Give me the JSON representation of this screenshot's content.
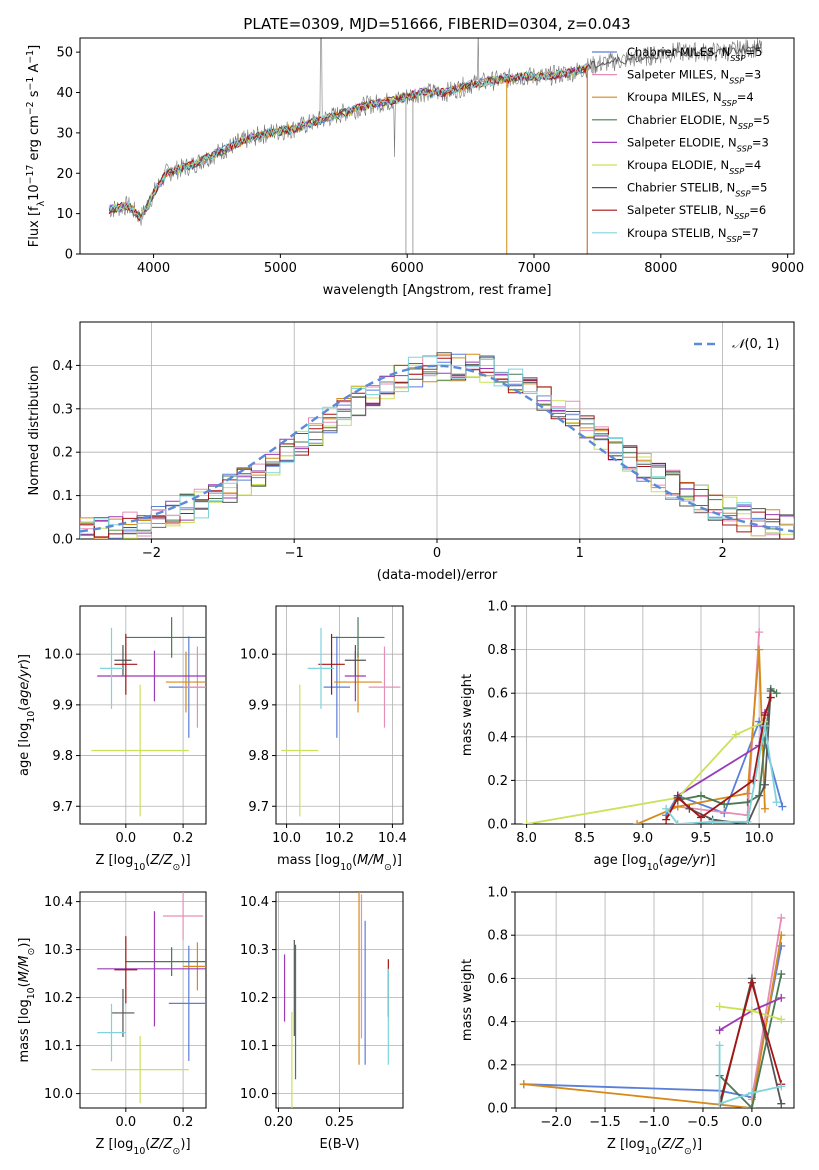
{
  "title": "PLATE=0309, MJD=51666, FIBERID=0304, z=0.043",
  "colors": [
    "#5a7fd8",
    "#e58fb8",
    "#d68a1a",
    "#4a7a54",
    "#9b3bb5",
    "#c9e25a",
    "#555555",
    "#a51414",
    "#7fd4dc"
  ],
  "chart_data": [
    {
      "type": "line",
      "id": "spectrum",
      "xlabel": "wavelength [Angstrom, rest frame]",
      "ylabel": "Flux [f_λ10^-17 erg cm^-2 s^-1 A^-1]",
      "xlim": [
        3420,
        9050
      ],
      "ylim": [
        0,
        53.5
      ],
      "xticks": [
        4000,
        5000,
        6000,
        7000,
        8000,
        9000
      ],
      "yticks": [
        0,
        10,
        20,
        30,
        40,
        50
      ],
      "grid": false,
      "legend_position": "right",
      "series": [
        {
          "name": "Chabrier MILES, N_SSP=5"
        },
        {
          "name": "Salpeter MILES, N_SSP=3"
        },
        {
          "name": "Kroupa MILES, N_SSP=4"
        },
        {
          "name": "Chabrier ELODIE, N_SSP=5"
        },
        {
          "name": "Salpeter ELODIE, N_SSP=3"
        },
        {
          "name": "Kroupa ELODIE, N_SSP=4"
        },
        {
          "name": "Chabrier STELIB, N_SSP=5"
        },
        {
          "name": "Salpeter STELIB, N_SSP=6"
        },
        {
          "name": "Kroupa STELIB, N_SSP=7"
        }
      ],
      "continuum": [
        [
          3650,
          11
        ],
        [
          3800,
          12
        ],
        [
          3900,
          9
        ],
        [
          4000,
          15
        ],
        [
          4100,
          20
        ],
        [
          4300,
          22
        ],
        [
          4500,
          25
        ],
        [
          4700,
          28
        ],
        [
          4900,
          30
        ],
        [
          5100,
          31
        ],
        [
          5300,
          33
        ],
        [
          5500,
          35
        ],
        [
          5700,
          37
        ],
        [
          5900,
          38
        ],
        [
          6100,
          40
        ],
        [
          6300,
          40
        ],
        [
          6500,
          42
        ],
        [
          6700,
          43
        ],
        [
          6900,
          44
        ],
        [
          7100,
          44
        ],
        [
          7300,
          45
        ],
        [
          7500,
          47
        ],
        [
          7700,
          48
        ],
        [
          7900,
          49
        ],
        [
          8100,
          50
        ],
        [
          8300,
          50
        ],
        [
          8500,
          50
        ],
        [
          8700,
          51
        ],
        [
          8800,
          51
        ]
      ]
    },
    {
      "type": "histogram",
      "id": "residuals",
      "xlabel": "(data-model)/error",
      "ylabel": "Normed distribution",
      "xlim": [
        -2.5,
        2.5
      ],
      "ylim": [
        0,
        0.5
      ],
      "xticks": [
        -2,
        -1,
        0,
        1,
        2
      ],
      "yticks": [
        0.0,
        0.1,
        0.2,
        0.3,
        0.4
      ],
      "grid": true,
      "legend_position": "top-right",
      "reference": {
        "name": "N(0,1)",
        "mu": 0,
        "sigma": 1
      },
      "bin_width": 0.1
    },
    {
      "type": "scatter",
      "id": "age-vs-Z",
      "xlabel": "Z [log10(Z/Z☉)]",
      "ylabel": "age  [log10(age/yr)]",
      "xlim": [
        -0.16,
        0.28
      ],
      "ylim": [
        9.665,
        10.095
      ],
      "xticks": [
        0.0,
        0.2
      ],
      "yticks": [
        9.7,
        9.8,
        9.9,
        10.0
      ],
      "points": [
        {
          "x": 0.22,
          "y": 9.935,
          "xerr": 0.07,
          "yerr": 0.1
        },
        {
          "x": 0.25,
          "y": 9.935,
          "xerr": 0.05,
          "yerr": 0.08
        },
        {
          "x": 0.21,
          "y": 9.945,
          "xerr": 0.07,
          "yerr": 0.06
        },
        {
          "x": 0.16,
          "y": 10.033,
          "xerr": 0.16,
          "yerr": 0.04
        },
        {
          "x": 0.1,
          "y": 9.957,
          "xerr": 0.2,
          "yerr": 0.05
        },
        {
          "x": 0.05,
          "y": 9.81,
          "xerr": 0.17,
          "yerr": 0.13
        },
        {
          "x": -0.01,
          "y": 9.988,
          "xerr": 0.03,
          "yerr": 0.03
        },
        {
          "x": 0.0,
          "y": 9.98,
          "xerr": 0.04,
          "yerr": 0.06
        },
        {
          "x": -0.05,
          "y": 9.972,
          "xerr": 0.04,
          "yerr": 0.08
        }
      ]
    },
    {
      "type": "scatter",
      "id": "age-vs-mass",
      "xlabel": "mass [log10(M/M☉)]",
      "ylabel": "",
      "xlim": [
        9.96,
        10.44
      ],
      "ylim": [
        9.665,
        10.095
      ],
      "xticks": [
        10.0,
        10.2,
        10.4
      ],
      "yticks": [
        9.7,
        9.8,
        9.9,
        10.0
      ],
      "points": [
        {
          "x": 10.19,
          "y": 9.935,
          "xerr": 0.05,
          "yerr": 0.1
        },
        {
          "x": 10.37,
          "y": 9.935,
          "xerr": 0.06,
          "yerr": 0.08
        },
        {
          "x": 10.27,
          "y": 9.945,
          "xerr": 0.09,
          "yerr": 0.06
        },
        {
          "x": 10.27,
          "y": 10.033,
          "xerr": 0.1,
          "yerr": 0.04
        },
        {
          "x": 10.26,
          "y": 9.957,
          "xerr": 0.04,
          "yerr": 0.05
        },
        {
          "x": 10.05,
          "y": 9.81,
          "xerr": 0.07,
          "yerr": 0.13
        },
        {
          "x": 10.26,
          "y": 9.988,
          "xerr": 0.04,
          "yerr": 0.03
        },
        {
          "x": 10.17,
          "y": 9.98,
          "xerr": 0.05,
          "yerr": 0.06
        },
        {
          "x": 10.13,
          "y": 9.972,
          "xerr": 0.05,
          "yerr": 0.08
        }
      ]
    },
    {
      "type": "line",
      "id": "weight-vs-age",
      "xlabel": "age  [log10(age/yr)]",
      "ylabel": "mass weight",
      "xlim": [
        7.9,
        10.3
      ],
      "ylim": [
        0,
        1
      ],
      "xticks": [
        8.0,
        8.5,
        9.0,
        9.5,
        10.0
      ],
      "yticks": [
        0.0,
        0.2,
        0.4,
        0.6,
        0.8,
        1.0
      ],
      "grid": true,
      "series": [
        {
          "x": [
            9.2,
            9.3,
            9.7,
            10.0,
            10.2
          ],
          "y": [
            0.04,
            0.13,
            0.05,
            0.47,
            0.08
          ]
        },
        {
          "x": [
            9.3,
            9.9,
            10.0
          ],
          "y": [
            0.08,
            0.04,
            0.88
          ]
        },
        {
          "x": [
            8.95,
            9.3,
            9.9,
            10.0,
            10.05
          ],
          "y": [
            0.0,
            0.08,
            0.14,
            0.8,
            0.07
          ]
        },
        {
          "x": [
            9.3,
            9.5,
            9.7,
            9.9,
            10.0,
            10.1,
            10.15
          ],
          "y": [
            0.11,
            0.13,
            0.09,
            0.1,
            0.13,
            0.62,
            0.6
          ]
        },
        {
          "x": [
            9.3,
            10.0,
            10.05
          ],
          "y": [
            0.13,
            0.36,
            0.51
          ]
        },
        {
          "x": [
            8.0,
            9.3,
            9.8,
            10.05
          ],
          "y": [
            0.0,
            0.12,
            0.41,
            0.47
          ]
        },
        {
          "x": [
            9.3,
            9.4,
            9.6,
            9.9,
            10.05,
            10.1
          ],
          "y": [
            0.13,
            0.07,
            0.02,
            0.0,
            0.18,
            0.61
          ]
        },
        {
          "x": [
            9.2,
            9.3,
            9.5,
            9.95,
            10.05,
            10.1
          ],
          "y": [
            0.02,
            0.12,
            0.03,
            0.2,
            0.5,
            0.58
          ]
        },
        {
          "x": [
            9.2,
            9.3,
            9.6,
            9.9,
            10.05,
            10.15
          ],
          "y": [
            0.07,
            0.0,
            0.01,
            0.01,
            0.45,
            0.1
          ]
        }
      ]
    },
    {
      "type": "scatter",
      "id": "mass-vs-Z",
      "xlabel": "Z [log10(Z/Z☉)]",
      "ylabel": "mass [log10(M/M☉)]",
      "xlim": [
        -0.16,
        0.28
      ],
      "ylim": [
        9.97,
        10.42
      ],
      "xticks": [
        0.0,
        0.2
      ],
      "yticks": [
        10.0,
        10.1,
        10.2,
        10.3,
        10.4
      ],
      "points": [
        {
          "x": 0.22,
          "y": 10.188,
          "xerr": 0.07,
          "yerr": 0.12
        },
        {
          "x": 0.2,
          "y": 10.37,
          "xerr": 0.07,
          "yerr": 0.05
        },
        {
          "x": 0.25,
          "y": 10.265,
          "xerr": 0.05,
          "yerr": 0.05
        },
        {
          "x": 0.16,
          "y": 10.275,
          "xerr": 0.16,
          "yerr": 0.03
        },
        {
          "x": 0.1,
          "y": 10.26,
          "xerr": 0.2,
          "yerr": 0.12
        },
        {
          "x": 0.05,
          "y": 10.05,
          "xerr": 0.17,
          "yerr": 0.07
        },
        {
          "x": -0.01,
          "y": 10.168,
          "xerr": 0.04,
          "yerr": 0.05
        },
        {
          "x": 0.0,
          "y": 10.258,
          "xerr": 0.04,
          "yerr": 0.07
        },
        {
          "x": -0.05,
          "y": 10.127,
          "xerr": 0.05,
          "yerr": 0.06
        }
      ]
    },
    {
      "type": "scatter",
      "id": "mass-vs-EBV",
      "xlabel": "E(B-V)",
      "ylabel": "",
      "xlim": [
        0.198,
        0.302
      ],
      "ylim": [
        9.97,
        10.42
      ],
      "xticks": [
        0.2,
        0.25
      ],
      "yticks": [
        10.0,
        10.1,
        10.2,
        10.3,
        10.4
      ],
      "points": [
        {
          "x": 0.271,
          "y": 10.21,
          "yerr": 0.15
        },
        {
          "x": 0.268,
          "y": 10.265,
          "yerr": 0.15
        },
        {
          "x": 0.266,
          "y": 10.24,
          "yerr": 0.18
        },
        {
          "x": 0.214,
          "y": 10.17,
          "yerr": 0.14
        },
        {
          "x": 0.205,
          "y": 10.22,
          "yerr": 0.07
        },
        {
          "x": 0.211,
          "y": 10.07,
          "yerr": 0.1
        },
        {
          "x": 0.213,
          "y": 10.22,
          "yerr": 0.1
        },
        {
          "x": 0.29,
          "y": 10.22,
          "yerr": 0.06
        },
        {
          "x": 0.29,
          "y": 10.16,
          "yerr": 0.1
        }
      ]
    },
    {
      "type": "line",
      "id": "weight-vs-Z",
      "xlabel": "Z [log10(Z/Z☉)]",
      "ylabel": "mass weight",
      "xlim": [
        -2.42,
        0.43
      ],
      "ylim": [
        0,
        1
      ],
      "xticks": [
        -2.0,
        -1.5,
        -1.0,
        -0.5,
        0.0
      ],
      "yticks": [
        0.0,
        0.2,
        0.4,
        0.6,
        0.8,
        1.0
      ],
      "grid": true,
      "series": [
        {
          "x": [
            -2.33,
            -0.33,
            0.0,
            0.3
          ],
          "y": [
            0.11,
            0.08,
            0.05,
            0.75
          ]
        },
        {
          "x": [
            0.0,
            0.3
          ],
          "y": [
            0.04,
            0.88
          ]
        },
        {
          "x": [
            -2.33,
            0.0,
            0.3
          ],
          "y": [
            0.11,
            0.0,
            0.8
          ]
        },
        {
          "x": [
            -0.33,
            0.0,
            0.3
          ],
          "y": [
            0.15,
            0.0,
            0.62
          ]
        },
        {
          "x": [
            -0.33,
            0.0,
            0.3
          ],
          "y": [
            0.36,
            0.45,
            0.51
          ]
        },
        {
          "x": [
            -0.33,
            0.0,
            0.3
          ],
          "y": [
            0.47,
            0.45,
            0.41
          ]
        },
        {
          "x": [
            -0.33,
            0.0,
            0.3
          ],
          "y": [
            0.0,
            0.6,
            0.02
          ]
        },
        {
          "x": [
            -0.33,
            0.0,
            0.3
          ],
          "y": [
            0.02,
            0.58,
            0.11
          ]
        },
        {
          "x": [
            -0.33,
            -0.33,
            0.0,
            0.3
          ],
          "y": [
            0.29,
            0.02,
            0.07,
            0.1
          ]
        }
      ]
    }
  ]
}
